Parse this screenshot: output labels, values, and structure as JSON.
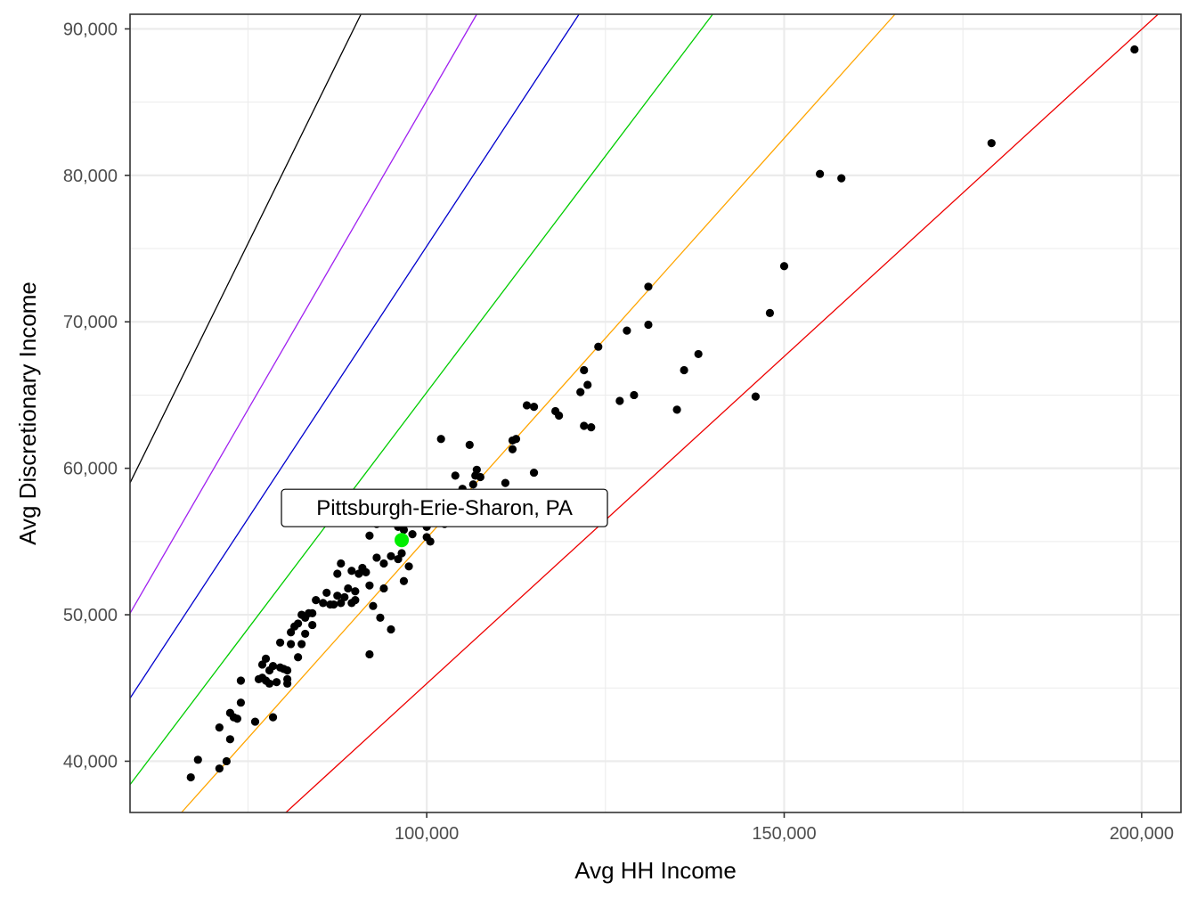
{
  "chart_data": {
    "type": "scatter",
    "xlabel": "Avg HH Income",
    "ylabel": "Avg Discretionary Income",
    "xlim": [
      58500,
      205500
    ],
    "ylim": [
      36500,
      91000
    ],
    "x_ticks": [
      100000,
      150000,
      200000
    ],
    "x_tick_labels": [
      "100,000",
      "150,000",
      "200,000"
    ],
    "y_ticks": [
      40000,
      50000,
      60000,
      70000,
      80000,
      90000
    ],
    "y_tick_labels": [
      "40,000",
      "50,000",
      "60,000",
      "70,000",
      "80,000",
      "90,000"
    ],
    "grid": true,
    "point_color": "#000000",
    "highlight": {
      "label": "Pittsburgh-Erie-Sharon, PA",
      "x": 96500,
      "y": 55100,
      "color": "#00ee00"
    },
    "reference_lines": [
      {
        "color": "#000000",
        "x1": 58500,
        "y1": 59000,
        "x2": 90800,
        "y2": 91000
      },
      {
        "color": "#a020f0",
        "x1": 58500,
        "y1": 50100,
        "x2": 107000,
        "y2": 91000
      },
      {
        "color": "#0000cd",
        "x1": 58500,
        "y1": 44300,
        "x2": 121300,
        "y2": 91000
      },
      {
        "color": "#00cd00",
        "x1": 58500,
        "y1": 38400,
        "x2": 140000,
        "y2": 91000
      },
      {
        "color": "#ffa500",
        "x1": 65700,
        "y1": 36500,
        "x2": 165500,
        "y2": 91000
      },
      {
        "color": "#ee0000",
        "x1": 80300,
        "y1": 36500,
        "x2": 202300,
        "y2": 91000
      }
    ],
    "points": [
      [
        199000,
        88600
      ],
      [
        179000,
        82200
      ],
      [
        155000,
        80100
      ],
      [
        158000,
        79800
      ],
      [
        150000,
        73800
      ],
      [
        131000,
        72400
      ],
      [
        148000,
        70600
      ],
      [
        131000,
        69800
      ],
      [
        128000,
        69400
      ],
      [
        124000,
        68300
      ],
      [
        138000,
        67800
      ],
      [
        122000,
        66700
      ],
      [
        136000,
        66700
      ],
      [
        122500,
        65700
      ],
      [
        121500,
        65200
      ],
      [
        129000,
        65000
      ],
      [
        127000,
        64600
      ],
      [
        146000,
        64900
      ],
      [
        114000,
        64300
      ],
      [
        115000,
        64200
      ],
      [
        135000,
        64000
      ],
      [
        118000,
        63900
      ],
      [
        118500,
        63600
      ],
      [
        122000,
        62900
      ],
      [
        123000,
        62800
      ],
      [
        102000,
        62000
      ],
      [
        112500,
        62000
      ],
      [
        112000,
        61900
      ],
      [
        106000,
        61600
      ],
      [
        112000,
        61300
      ],
      [
        107000,
        59900
      ],
      [
        104000,
        59500
      ],
      [
        107500,
        59400
      ],
      [
        115000,
        59700
      ],
      [
        106800,
        59500
      ],
      [
        111000,
        59000
      ],
      [
        105000,
        58600
      ],
      [
        106500,
        58900
      ],
      [
        100000,
        56000
      ],
      [
        102500,
        56200
      ],
      [
        96000,
        56000
      ],
      [
        96800,
        55800
      ],
      [
        98000,
        55500
      ],
      [
        92000,
        55400
      ],
      [
        100000,
        55300
      ],
      [
        100500,
        55000
      ],
      [
        93000,
        56200
      ],
      [
        95000,
        54000
      ],
      [
        96500,
        54200
      ],
      [
        97500,
        53300
      ],
      [
        93000,
        53900
      ],
      [
        94000,
        53500
      ],
      [
        91000,
        53200
      ],
      [
        90500,
        52800
      ],
      [
        88000,
        53500
      ],
      [
        89500,
        53000
      ],
      [
        91500,
        52900
      ],
      [
        87500,
        52800
      ],
      [
        96000,
        53800
      ],
      [
        96800,
        52300
      ],
      [
        92000,
        52000
      ],
      [
        94000,
        51800
      ],
      [
        90000,
        51600
      ],
      [
        89000,
        51800
      ],
      [
        86000,
        51500
      ],
      [
        87500,
        51300
      ],
      [
        88500,
        51200
      ],
      [
        90000,
        51000
      ],
      [
        84500,
        51000
      ],
      [
        85500,
        50800
      ],
      [
        86500,
        50700
      ],
      [
        88000,
        50800
      ],
      [
        89500,
        50800
      ],
      [
        87000,
        50700
      ],
      [
        84000,
        50100
      ],
      [
        82500,
        50000
      ],
      [
        83000,
        49800
      ],
      [
        83500,
        50100
      ],
      [
        82000,
        49400
      ],
      [
        81500,
        49200
      ],
      [
        84000,
        49300
      ],
      [
        92500,
        50600
      ],
      [
        93500,
        49800
      ],
      [
        95000,
        49000
      ],
      [
        81000,
        48800
      ],
      [
        83000,
        48700
      ],
      [
        79500,
        48100
      ],
      [
        81000,
        48000
      ],
      [
        82500,
        48000
      ],
      [
        92000,
        47300
      ],
      [
        82000,
        47100
      ],
      [
        77500,
        47000
      ],
      [
        77000,
        46600
      ],
      [
        78500,
        46500
      ],
      [
        79500,
        46400
      ],
      [
        80000,
        46300
      ],
      [
        78000,
        46200
      ],
      [
        80500,
        46200
      ],
      [
        77000,
        45700
      ],
      [
        76500,
        45600
      ],
      [
        77500,
        45500
      ],
      [
        80500,
        45600
      ],
      [
        79000,
        45400
      ],
      [
        78000,
        45300
      ],
      [
        80500,
        45300
      ],
      [
        74000,
        45500
      ],
      [
        74000,
        44000
      ],
      [
        72500,
        43300
      ],
      [
        73500,
        42900
      ],
      [
        71000,
        42300
      ],
      [
        76000,
        42700
      ],
      [
        78500,
        43000
      ],
      [
        73000,
        43000
      ],
      [
        72500,
        41500
      ],
      [
        68000,
        40100
      ],
      [
        72000,
        40000
      ],
      [
        71000,
        39500
      ],
      [
        67000,
        38900
      ]
    ]
  }
}
